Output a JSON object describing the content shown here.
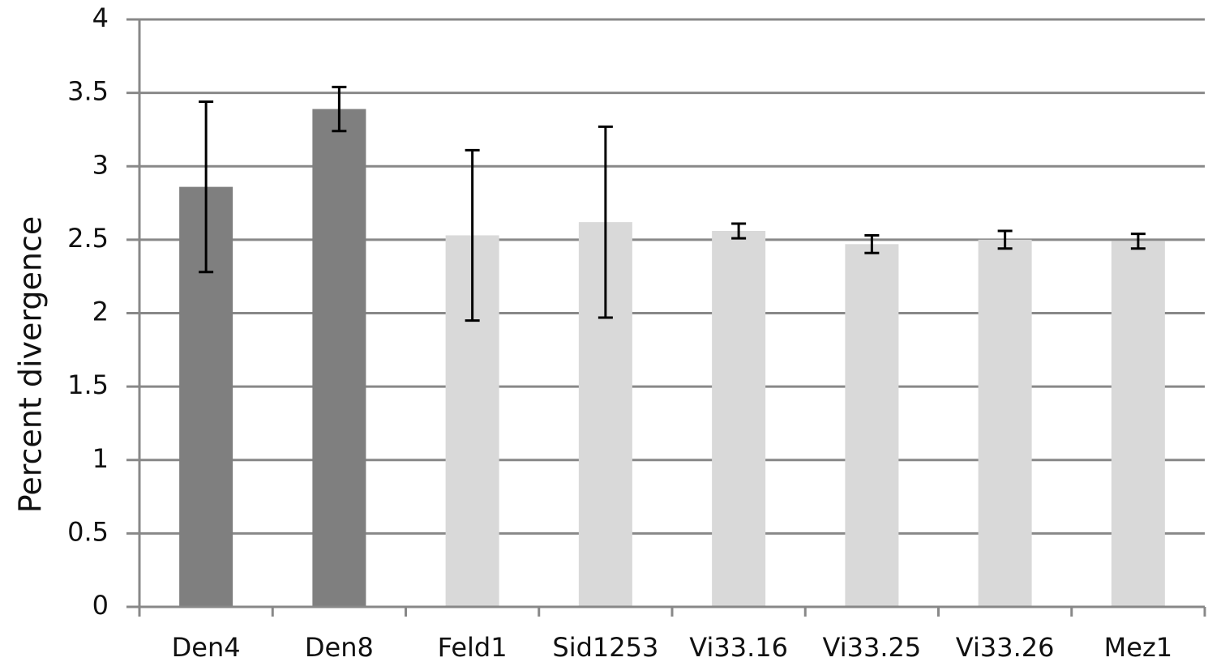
{
  "chart_data": {
    "type": "bar",
    "ylabel": "Percent divergence",
    "categories": [
      "Den4",
      "Den8",
      "Feld1",
      "Sid1253",
      "Vi33.16",
      "Vi33.25",
      "Vi33.26",
      "Mez1"
    ],
    "values": [
      2.86,
      3.39,
      2.53,
      2.62,
      2.56,
      2.47,
      2.5,
      2.49
    ],
    "errors": [
      0.58,
      0.15,
      0.58,
      0.65,
      0.05,
      0.06,
      0.06,
      0.05
    ],
    "colors": [
      "#7f7f7f",
      "#7f7f7f",
      "#d9d9d9",
      "#d9d9d9",
      "#d9d9d9",
      "#d9d9d9",
      "#d9d9d9",
      "#d9d9d9"
    ],
    "ylim": [
      0,
      4
    ],
    "yticks": [
      0,
      0.5,
      1,
      1.5,
      2,
      2.5,
      3,
      3.5,
      4
    ],
    "grid": true
  }
}
